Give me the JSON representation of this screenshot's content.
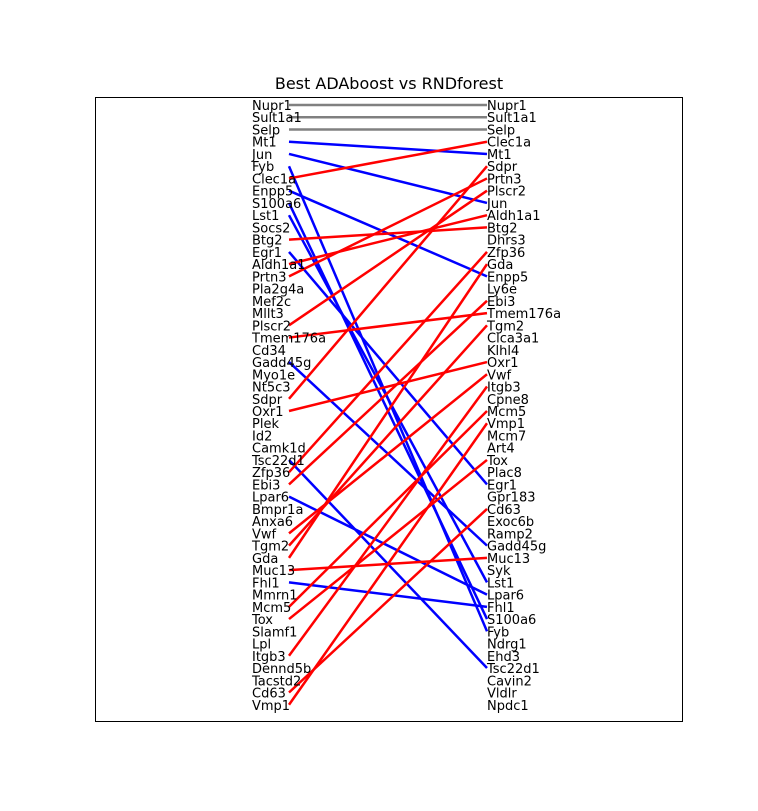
{
  "chart_data": {
    "type": "slope",
    "title": "Best ADAboost vs RNDforest",
    "left_genes": [
      "Nupr1",
      "Sult1a1",
      "Selp",
      "Mt1",
      "Jun",
      "Fyb",
      "Clec1a",
      "Enpp5",
      "S100a6",
      "Lst1",
      "Socs2",
      "Btg2",
      "Egr1",
      "Aldh1a1",
      "Prtn3",
      "Pla2g4a",
      "Mef2c",
      "Mllt3",
      "Plscr2",
      "Tmem176a",
      "Cd34",
      "Gadd45g",
      "Myo1e",
      "Nt5c3",
      "Sdpr",
      "Oxr1",
      "Plek",
      "Id2",
      "Camk1d",
      "Tsc22d1",
      "Zfp36",
      "Ebi3",
      "Lpar6",
      "Bmpr1a",
      "Anxa6",
      "Vwf",
      "Tgm2",
      "Gda",
      "Muc13",
      "Fhl1",
      "Mmrn1",
      "Mcm5",
      "Tox",
      "Slamf1",
      "Lpl",
      "Itgb3",
      "Dennd5b",
      "Tacstd2",
      "Cd63",
      "Vmp1"
    ],
    "right_genes": [
      "Nupr1",
      "Sult1a1",
      "Selp",
      "Clec1a",
      "Mt1",
      "Sdpr",
      "Prtn3",
      "Plscr2",
      "Jun",
      "Aldh1a1",
      "Btg2",
      "Dhrs3",
      "Zfp36",
      "Gda",
      "Enpp5",
      "Ly6e",
      "Ebi3",
      "Tmem176a",
      "Tgm2",
      "Clca3a1",
      "Klhl4",
      "Oxr1",
      "Vwf",
      "Itgb3",
      "Cpne8",
      "Mcm5",
      "Vmp1",
      "Mcm7",
      "Art4",
      "Tox",
      "Plac8",
      "Egr1",
      "Gpr183",
      "Cd63",
      "Exoc6b",
      "Ramp2",
      "Gadd45g",
      "Muc13",
      "Syk",
      "Lst1",
      "Lpar6",
      "Fhl1",
      "S100a6",
      "Fyb",
      "Ndrg1",
      "Ehd3",
      "Tsc22d1",
      "Cavin2",
      "Vldlr",
      "Npdc1"
    ],
    "color_legend": {
      "same_rank": "#808080",
      "rank_down": "#0000ff",
      "rank_up": "#ff0000"
    }
  }
}
